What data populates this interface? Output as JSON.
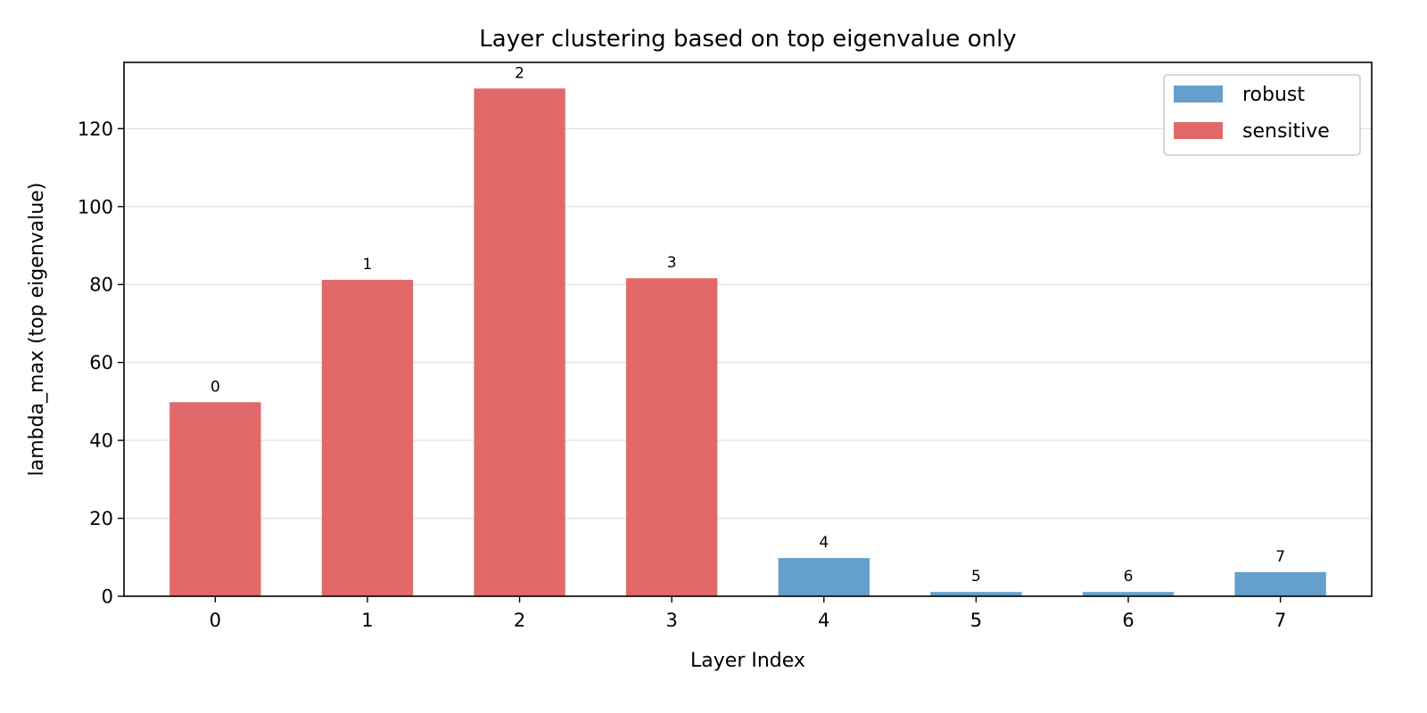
{
  "chart_data": {
    "type": "bar",
    "title": "Layer clustering based on top eigenvalue only",
    "xlabel": "Layer Index",
    "ylabel": "lambda_max (top eigenvalue)",
    "categories": [
      "0",
      "1",
      "2",
      "3",
      "4",
      "5",
      "6",
      "7"
    ],
    "values": [
      49.8,
      81.2,
      130.3,
      81.6,
      9.8,
      1.1,
      1.1,
      6.2
    ],
    "bar_labels": [
      "0",
      "1",
      "2",
      "3",
      "4",
      "5",
      "6",
      "7"
    ],
    "groups": [
      "sensitive",
      "sensitive",
      "sensitive",
      "sensitive",
      "robust",
      "robust",
      "robust",
      "robust"
    ],
    "series": [
      {
        "name": "robust",
        "color": "#64a0cb"
      },
      {
        "name": "sensitive",
        "color": "#e2696a"
      }
    ],
    "ylim": [
      0,
      137
    ],
    "yticks": [
      0,
      20,
      40,
      60,
      80,
      100,
      120
    ],
    "grid": "y",
    "legend_position": "top-right"
  }
}
